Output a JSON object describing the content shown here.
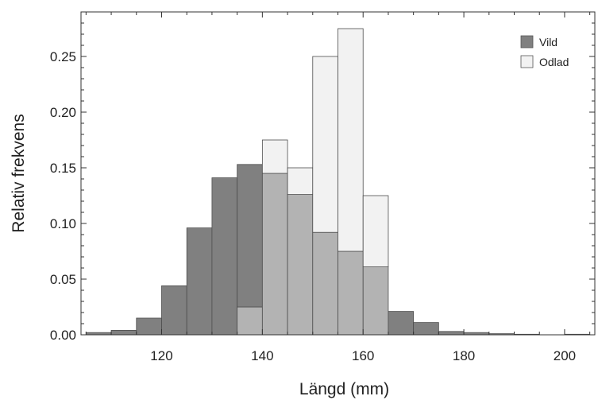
{
  "chart_data": {
    "type": "bar",
    "xlabel": "Längd (mm)",
    "ylabel": "Relativ frekvens",
    "xlim": [
      104,
      206
    ],
    "ylim": [
      0,
      0.29
    ],
    "bin_width": 5,
    "x_ticks": [
      120,
      140,
      160,
      180,
      200
    ],
    "x_tick_labels": [
      "120",
      "140",
      "160",
      "180",
      "200"
    ],
    "y_ticks": [
      0,
      0.05,
      0.1,
      0.15,
      0.2,
      0.25
    ],
    "y_tick_labels": [
      "0.00",
      "0.05",
      "0.10",
      "0.15",
      "0.20",
      "0.25"
    ],
    "legend_position": "top-right",
    "series": [
      {
        "name": "Vild",
        "color": "#808080",
        "bins": [
          {
            "start": 105,
            "value": 0.002
          },
          {
            "start": 110,
            "value": 0.004
          },
          {
            "start": 115,
            "value": 0.015
          },
          {
            "start": 120,
            "value": 0.044
          },
          {
            "start": 125,
            "value": 0.096
          },
          {
            "start": 130,
            "value": 0.141
          },
          {
            "start": 135,
            "value": 0.153
          },
          {
            "start": 140,
            "value": 0.145
          },
          {
            "start": 145,
            "value": 0.126
          },
          {
            "start": 150,
            "value": 0.092
          },
          {
            "start": 155,
            "value": 0.075
          },
          {
            "start": 160,
            "value": 0.061
          },
          {
            "start": 165,
            "value": 0.021
          },
          {
            "start": 170,
            "value": 0.011
          },
          {
            "start": 175,
            "value": 0.003
          },
          {
            "start": 180,
            "value": 0.002
          },
          {
            "start": 185,
            "value": 0.001
          },
          {
            "start": 190,
            "value": 0.0005
          },
          {
            "start": 200,
            "value": 0.0005
          }
        ]
      },
      {
        "name": "Odlad",
        "color": "#f2f2f2",
        "bins": [
          {
            "start": 135,
            "value": 0.025
          },
          {
            "start": 140,
            "value": 0.175
          },
          {
            "start": 145,
            "value": 0.15
          },
          {
            "start": 150,
            "value": 0.25
          },
          {
            "start": 155,
            "value": 0.275
          },
          {
            "start": 160,
            "value": 0.125
          }
        ]
      }
    ],
    "overlap_color": "#b3b3b3"
  }
}
